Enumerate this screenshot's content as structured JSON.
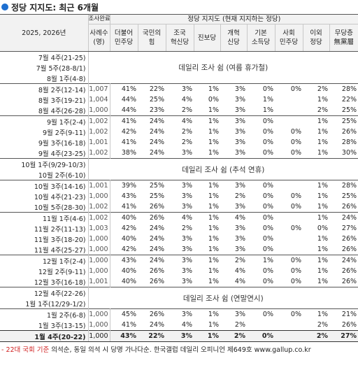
{
  "title": "정당 지지도: 최근 6개월",
  "header": {
    "period": "2025, 2026년",
    "survey_done": "조사완료",
    "sample": "사례수\n(명)",
    "group": "정당 지지도 (현재 지지하는 정당)",
    "parties": [
      "더불어\n민주당",
      "국민의\n힘",
      "조국\n혁신당",
      "진보당",
      "개혁\n신당",
      "기본\n소득당",
      "사회\n민주당",
      "이외\n정당",
      "무당층\n無黨層"
    ]
  },
  "rows": [
    {
      "label": "7월 4주(21-25)",
      "note_start": true,
      "note": "데일리 조사 쉼 (여름 휴가철)",
      "note_span": 3,
      "group_start": true
    },
    {
      "label": "7월 5주(28-8/1)"
    },
    {
      "label": "8월 1주(4-8)"
    },
    {
      "label": "8월 2주(12-14)",
      "n": "1,007",
      "v": [
        "41%",
        "22%",
        "3%",
        "1%",
        "3%",
        "0%",
        "0%",
        "2%",
        "28%"
      ],
      "group_start": true
    },
    {
      "label": "8월 3주(19-21)",
      "n": "1,004",
      "v": [
        "44%",
        "25%",
        "4%",
        "0%",
        "3%",
        "1%",
        "",
        "1%",
        "22%"
      ]
    },
    {
      "label": "8월 4주(26-28)",
      "n": "1,000",
      "v": [
        "44%",
        "23%",
        "2%",
        "1%",
        "3%",
        "1%",
        "",
        "2%",
        "25%"
      ]
    },
    {
      "label": "9월 1주(2-4)",
      "n": "1,002",
      "v": [
        "41%",
        "24%",
        "4%",
        "1%",
        "3%",
        "0%",
        "",
        "1%",
        "25%"
      ],
      "group_start": true
    },
    {
      "label": "9월 2주(9-11)",
      "n": "1,002",
      "v": [
        "42%",
        "24%",
        "2%",
        "1%",
        "3%",
        "0%",
        "0%",
        "1%",
        "26%"
      ]
    },
    {
      "label": "9월 3주(16-18)",
      "n": "1,001",
      "v": [
        "41%",
        "24%",
        "2%",
        "1%",
        "3%",
        "0%",
        "0%",
        "1%",
        "28%"
      ]
    },
    {
      "label": "9월 4주(23-25)",
      "n": "1,002",
      "v": [
        "38%",
        "24%",
        "3%",
        "1%",
        "3%",
        "0%",
        "0%",
        "1%",
        "30%"
      ]
    },
    {
      "label": "10월 1주(9/29-10/3)",
      "note_start": true,
      "note": "데일리 조사 쉼 (추석 연휴)",
      "note_span": 2,
      "group_start": true
    },
    {
      "label": "10월 2주(6-10)"
    },
    {
      "label": "10월 3주(14-16)",
      "n": "1,001",
      "v": [
        "39%",
        "25%",
        "3%",
        "1%",
        "3%",
        "0%",
        "",
        "1%",
        "28%"
      ],
      "group_start": true
    },
    {
      "label": "10월 4주(21-23)",
      "n": "1,000",
      "v": [
        "43%",
        "25%",
        "3%",
        "1%",
        "2%",
        "0%",
        "0%",
        "1%",
        "25%"
      ]
    },
    {
      "label": "10월 5주(28-30)",
      "n": "1,002",
      "v": [
        "41%",
        "26%",
        "3%",
        "1%",
        "3%",
        "0%",
        "0%",
        "1%",
        "26%"
      ]
    },
    {
      "label": "11월 1주(4-6)",
      "n": "1,002",
      "v": [
        "40%",
        "26%",
        "4%",
        "1%",
        "4%",
        "0%",
        "",
        "1%",
        "24%"
      ],
      "group_start": true
    },
    {
      "label": "11월 2주(11-13)",
      "n": "1,003",
      "v": [
        "42%",
        "24%",
        "2%",
        "1%",
        "3%",
        "0%",
        "0%",
        "0%",
        "27%"
      ]
    },
    {
      "label": "11월 3주(18-20)",
      "n": "1,000",
      "v": [
        "40%",
        "24%",
        "3%",
        "1%",
        "3%",
        "0%",
        "",
        "1%",
        "26%"
      ]
    },
    {
      "label": "11월 4주(25-27)",
      "n": "1,000",
      "v": [
        "42%",
        "24%",
        "3%",
        "1%",
        "3%",
        "0%",
        "",
        "1%",
        "26%"
      ]
    },
    {
      "label": "12월 1주(2-4)",
      "n": "1,000",
      "v": [
        "43%",
        "24%",
        "3%",
        "1%",
        "2%",
        "1%",
        "0%",
        "1%",
        "24%"
      ],
      "group_start": true
    },
    {
      "label": "12월 2주(9-11)",
      "n": "1,000",
      "v": [
        "40%",
        "26%",
        "3%",
        "1%",
        "4%",
        "0%",
        "0%",
        "1%",
        "26%"
      ]
    },
    {
      "label": "12월 3주(16-18)",
      "n": "1,001",
      "v": [
        "40%",
        "26%",
        "3%",
        "1%",
        "4%",
        "0%",
        "0%",
        "1%",
        "26%"
      ]
    },
    {
      "label": "12월 4주(22-26)",
      "note_start": true,
      "note": "데일리 조사 쉼 (연말연시)",
      "note_span": 2,
      "group_start": true
    },
    {
      "label": "1월 1주(12/29-1/2)"
    },
    {
      "label": "1월 2주(6-8)",
      "n": "1,000",
      "v": [
        "45%",
        "26%",
        "3%",
        "1%",
        "3%",
        "0%",
        "0%",
        "1%",
        "21%"
      ],
      "group_start": true
    },
    {
      "label": "1월 3주(13-15)",
      "n": "1,000",
      "v": [
        "41%",
        "24%",
        "4%",
        "1%",
        "2%",
        "",
        "",
        "2%",
        "26%"
      ]
    }
  ],
  "total": {
    "label": "1월 4주(20-22)",
    "n": "1,000",
    "v": [
      "43%",
      "22%",
      "3%",
      "1%",
      "2%",
      "0%",
      "",
      "2%",
      "27%"
    ]
  },
  "footnote": {
    "red": "- 22대 국회 기준",
    "text": " 의석순, 동일 의석 시 당명 가나다순. 한국갤럽 데일리 오피니언 제649호 www.gallup.co.kr"
  }
}
